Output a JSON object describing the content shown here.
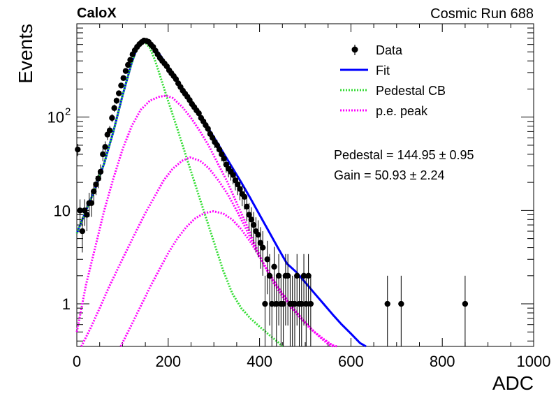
{
  "header": {
    "left_label": "CaloX",
    "right_label": "Cosmic Run 688"
  },
  "stats": {
    "pedestal": "Pedestal = 144.95 ± 0.95",
    "gain": "Gain = 50.93 ± 2.24"
  },
  "legend": {
    "placement": "top-right",
    "items": [
      {
        "label": "Data",
        "style": "marker",
        "color": "#000000"
      },
      {
        "label": "Fit",
        "style": "solid",
        "color": "#0000ff"
      },
      {
        "label": "Pedestal CB",
        "style": "dotted",
        "color": "#33dd33"
      },
      {
        "label": "p.e. peak",
        "style": "dotted",
        "color": "#ff00ff"
      }
    ]
  },
  "chart_data": {
    "type": "scatter",
    "xlabel": "ADC",
    "ylabel": "Events",
    "xlim": [
      0,
      1000
    ],
    "ylim": [
      0.35,
      1000
    ],
    "yscale": "log",
    "x_ticks": [
      "0",
      "200",
      "400",
      "600",
      "800",
      "1000"
    ],
    "y_ticks": [
      {
        "value": 1,
        "label": "1"
      },
      {
        "value": 10,
        "label": "10"
      },
      {
        "value": 100,
        "label": "10",
        "sup": "2"
      }
    ],
    "grid": false,
    "series": [
      {
        "name": "Data",
        "kind": "points",
        "color": "#000000",
        "points": [
          {
            "x": 2,
            "y": 45
          },
          {
            "x": 7,
            "y": 10
          },
          {
            "x": 12,
            "y": 6
          },
          {
            "x": 17,
            "y": 10
          },
          {
            "x": 22,
            "y": 9
          },
          {
            "x": 27,
            "y": 12
          },
          {
            "x": 32,
            "y": 12
          },
          {
            "x": 37,
            "y": 16
          },
          {
            "x": 42,
            "y": 19
          },
          {
            "x": 47,
            "y": 22
          },
          {
            "x": 52,
            "y": 26
          },
          {
            "x": 57,
            "y": 40
          },
          {
            "x": 62,
            "y": 48
          },
          {
            "x": 67,
            "y": 65
          },
          {
            "x": 72,
            "y": 72
          },
          {
            "x": 77,
            "y": 98
          },
          {
            "x": 82,
            "y": 125
          },
          {
            "x": 87,
            "y": 150
          },
          {
            "x": 92,
            "y": 180
          },
          {
            "x": 97,
            "y": 218
          },
          {
            "x": 102,
            "y": 262
          },
          {
            "x": 107,
            "y": 312
          },
          {
            "x": 112,
            "y": 362
          },
          {
            "x": 117,
            "y": 410
          },
          {
            "x": 122,
            "y": 470
          },
          {
            "x": 127,
            "y": 520
          },
          {
            "x": 132,
            "y": 565
          },
          {
            "x": 137,
            "y": 605
          },
          {
            "x": 142,
            "y": 635
          },
          {
            "x": 147,
            "y": 660
          },
          {
            "x": 152,
            "y": 655
          },
          {
            "x": 157,
            "y": 640
          },
          {
            "x": 162,
            "y": 600
          },
          {
            "x": 167,
            "y": 565
          },
          {
            "x": 172,
            "y": 515
          },
          {
            "x": 177,
            "y": 470
          },
          {
            "x": 182,
            "y": 430
          },
          {
            "x": 187,
            "y": 400
          },
          {
            "x": 192,
            "y": 375
          },
          {
            "x": 197,
            "y": 350
          },
          {
            "x": 202,
            "y": 318
          },
          {
            "x": 207,
            "y": 295
          },
          {
            "x": 212,
            "y": 275
          },
          {
            "x": 217,
            "y": 255
          },
          {
            "x": 222,
            "y": 230
          },
          {
            "x": 227,
            "y": 210
          },
          {
            "x": 232,
            "y": 192
          },
          {
            "x": 237,
            "y": 178
          },
          {
            "x": 242,
            "y": 165
          },
          {
            "x": 247,
            "y": 152
          },
          {
            "x": 252,
            "y": 138
          },
          {
            "x": 257,
            "y": 128
          },
          {
            "x": 262,
            "y": 118
          },
          {
            "x": 267,
            "y": 110
          },
          {
            "x": 272,
            "y": 98
          },
          {
            "x": 277,
            "y": 90
          },
          {
            "x": 282,
            "y": 82
          },
          {
            "x": 287,
            "y": 75
          },
          {
            "x": 292,
            "y": 66
          },
          {
            "x": 297,
            "y": 60
          },
          {
            "x": 302,
            "y": 54
          },
          {
            "x": 307,
            "y": 50
          },
          {
            "x": 312,
            "y": 45
          },
          {
            "x": 317,
            "y": 40
          },
          {
            "x": 322,
            "y": 36
          },
          {
            "x": 327,
            "y": 31
          },
          {
            "x": 332,
            "y": 28
          },
          {
            "x": 337,
            "y": 26
          },
          {
            "x": 342,
            "y": 24
          },
          {
            "x": 347,
            "y": 21
          },
          {
            "x": 352,
            "y": 19
          },
          {
            "x": 357,
            "y": 17
          },
          {
            "x": 362,
            "y": 15
          },
          {
            "x": 367,
            "y": 14
          },
          {
            "x": 372,
            "y": 11
          },
          {
            "x": 377,
            "y": 9
          },
          {
            "x": 382,
            "y": 8
          },
          {
            "x": 387,
            "y": 7
          },
          {
            "x": 392,
            "y": 6
          },
          {
            "x": 397,
            "y": 5.5
          },
          {
            "x": 402,
            "y": 4.5
          },
          {
            "x": 407,
            "y": 4
          },
          {
            "x": 412,
            "y": 1
          },
          {
            "x": 417,
            "y": 3
          },
          {
            "x": 422,
            "y": 2
          },
          {
            "x": 427,
            "y": 1
          },
          {
            "x": 432,
            "y": 2.5
          },
          {
            "x": 437,
            "y": 1
          },
          {
            "x": 442,
            "y": 2
          },
          {
            "x": 447,
            "y": 1
          },
          {
            "x": 452,
            "y": 1
          },
          {
            "x": 457,
            "y": 2
          },
          {
            "x": 462,
            "y": 2
          },
          {
            "x": 467,
            "y": 1
          },
          {
            "x": 472,
            "y": 1
          },
          {
            "x": 477,
            "y": 1
          },
          {
            "x": 482,
            "y": 2
          },
          {
            "x": 487,
            "y": 1
          },
          {
            "x": 492,
            "y": 1
          },
          {
            "x": 497,
            "y": 2
          },
          {
            "x": 502,
            "y": 1
          },
          {
            "x": 507,
            "y": 2
          },
          {
            "x": 512,
            "y": 1
          },
          {
            "x": 680,
            "y": 1
          },
          {
            "x": 710,
            "y": 1
          },
          {
            "x": 850,
            "y": 1
          }
        ]
      },
      {
        "name": "Fit",
        "kind": "line",
        "color": "#0000ff",
        "x": [
          0,
          20,
          40,
          60,
          80,
          100,
          120,
          130,
          140,
          150,
          160,
          170,
          180,
          200,
          220,
          240,
          260,
          280,
          300,
          320,
          340,
          360,
          380,
          400,
          420,
          440,
          460,
          480,
          500,
          520,
          540,
          560,
          580,
          600,
          620,
          633
        ],
        "y": [
          5.7,
          10,
          17,
          32,
          70,
          170,
          380,
          520,
          610,
          650,
          620,
          550,
          480,
          345,
          245,
          175,
          125,
          88,
          61,
          42,
          29,
          20,
          13.5,
          9,
          6,
          4,
          2.7,
          2.2,
          1.7,
          1.3,
          1.0,
          0.77,
          0.6,
          0.48,
          0.38,
          0.33
        ]
      },
      {
        "name": "Pedestal CB",
        "kind": "dotted-line",
        "color": "#33dd33",
        "x": [
          0,
          20,
          40,
          60,
          80,
          100,
          120,
          130,
          140,
          145,
          150,
          160,
          170,
          180,
          200,
          220,
          240,
          260,
          280,
          300,
          320,
          340,
          360,
          380,
          400,
          420,
          440,
          450
        ],
        "y": [
          5.7,
          10,
          17,
          32,
          70,
          170,
          380,
          520,
          610,
          640,
          630,
          550,
          420,
          300,
          148,
          75,
          37,
          18.5,
          9.2,
          4.6,
          2.3,
          1.3,
          0.9,
          0.7,
          0.57,
          0.47,
          0.39,
          0.35
        ]
      },
      {
        "name": "p.e. peak 1",
        "kind": "dotted-line",
        "color": "#ff00ff",
        "x": [
          0,
          20,
          40,
          60,
          80,
          100,
          120,
          140,
          160,
          180,
          196,
          210,
          230,
          250,
          270,
          290,
          310,
          330,
          350,
          370,
          390,
          410,
          430,
          450,
          470,
          490,
          510,
          530,
          550,
          560
        ],
        "y": [
          0.5,
          1.6,
          4,
          10,
          22,
          45,
          80,
          120,
          150,
          165,
          170,
          160,
          130,
          98,
          70,
          48,
          31,
          20,
          12,
          7.3,
          4.3,
          2.6,
          1.7,
          1.2,
          0.9,
          0.7,
          0.55,
          0.45,
          0.37,
          0.34
        ]
      },
      {
        "name": "p.e. peak 2",
        "kind": "dotted-line",
        "color": "#ff00ff",
        "x": [
          10,
          30,
          50,
          70,
          90,
          110,
          130,
          150,
          170,
          190,
          210,
          230,
          248,
          270,
          290,
          310,
          330,
          350,
          370,
          390,
          410,
          430,
          450,
          470,
          490,
          510,
          530,
          550,
          565
        ],
        "y": [
          0.35,
          0.55,
          0.9,
          1.5,
          2.4,
          3.8,
          6,
          9.4,
          14,
          21,
          28,
          34,
          37,
          34,
          28,
          21,
          15,
          10,
          6.4,
          4,
          2.6,
          1.8,
          1.3,
          0.95,
          0.72,
          0.56,
          0.45,
          0.38,
          0.34
        ]
      },
      {
        "name": "p.e. peak 3",
        "kind": "dotted-line",
        "color": "#ff00ff",
        "x": [
          96,
          120,
          140,
          160,
          180,
          200,
          220,
          240,
          260,
          280,
          299,
          320,
          340,
          360,
          380,
          400,
          420,
          440,
          460,
          480,
          500,
          520,
          540,
          560,
          570
        ],
        "y": [
          0.35,
          0.6,
          0.95,
          1.5,
          2.3,
          3.5,
          5,
          6.7,
          8.3,
          9.4,
          9.8,
          9.3,
          8,
          6.3,
          4.6,
          3.2,
          2.2,
          1.5,
          1.1,
          0.82,
          0.63,
          0.5,
          0.42,
          0.36,
          0.34
        ]
      }
    ]
  }
}
